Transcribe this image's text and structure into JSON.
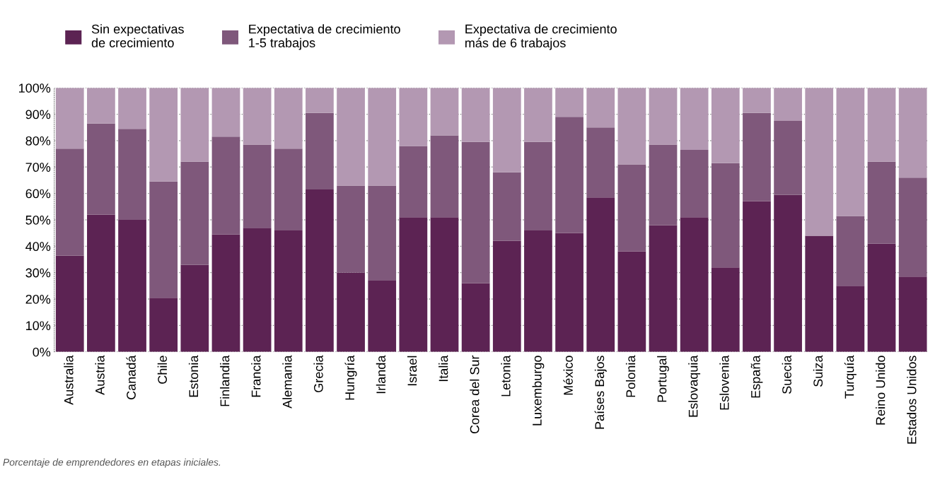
{
  "chart_data": {
    "type": "bar",
    "stacked": true,
    "categories": [
      "Australia",
      "Austria",
      "Canadá",
      "Chile",
      "Estonia",
      "Finlandia",
      "Francia",
      "Alemania",
      "Grecia",
      "Hungría",
      "Irlanda",
      "Israel",
      "Italia",
      "Corea del Sur",
      "Letonia",
      "Luxemburgo",
      "México",
      "Países Bajos",
      "Polonia",
      "Portugal",
      "Eslovaquia",
      "Eslovenia",
      "España",
      "Suecia",
      "Suiza",
      "Turquía",
      "Reino Unido",
      "Estados Unidos"
    ],
    "series": [
      {
        "name": "Sin expectativas\nde crecimiento",
        "color": "#5c2353",
        "values": [
          36.5,
          52,
          50,
          20.5,
          33,
          44.5,
          47,
          46,
          61.5,
          30,
          27,
          51,
          51,
          26,
          42,
          46,
          45,
          58.5,
          38,
          48,
          51,
          32,
          57,
          59.5,
          44,
          25,
          41,
          28.5
        ]
      },
      {
        "name": "Expectativa de crecimiento\n1-5 trabajos",
        "color": "#7f587b",
        "values": [
          40.5,
          34.5,
          34.5,
          44,
          39,
          37,
          31.5,
          31,
          29,
          33,
          36,
          27,
          31,
          53.5,
          26,
          33.5,
          44,
          26.5,
          33,
          30.5,
          25.5,
          39.5,
          33.5,
          28,
          0,
          26.5,
          31,
          37.5
        ]
      },
      {
        "name": "Expectativa de crecimiento\nmás de 6 trabajos",
        "color": "#b398b2",
        "values": [
          23,
          13.5,
          15.5,
          35.5,
          28,
          18.5,
          21.5,
          23,
          9.5,
          37,
          37,
          22,
          18,
          20.5,
          32,
          20.5,
          11,
          15,
          29,
          21.5,
          23.5,
          28.5,
          9.5,
          12.5,
          56,
          48.5,
          28,
          34
        ]
      }
    ],
    "ylim": [
      0,
      100
    ],
    "yticks": [
      {
        "value": 0,
        "label": "0%"
      },
      {
        "value": 10,
        "label": "10%"
      },
      {
        "value": 20,
        "label": "20%"
      },
      {
        "value": 30,
        "label": "30%"
      },
      {
        "value": 40,
        "label": "40%"
      },
      {
        "value": 50,
        "label": "50%"
      },
      {
        "value": 60,
        "label": "60%"
      },
      {
        "value": 70,
        "label": "70%"
      },
      {
        "value": 80,
        "label": "80%"
      },
      {
        "value": 90,
        "label": "90%"
      },
      {
        "value": 100,
        "label": "100%"
      }
    ],
    "grid": "y",
    "legend": "top left",
    "annotations": [
      "Porcentaje de emprendedores en etapas iniciales."
    ]
  }
}
